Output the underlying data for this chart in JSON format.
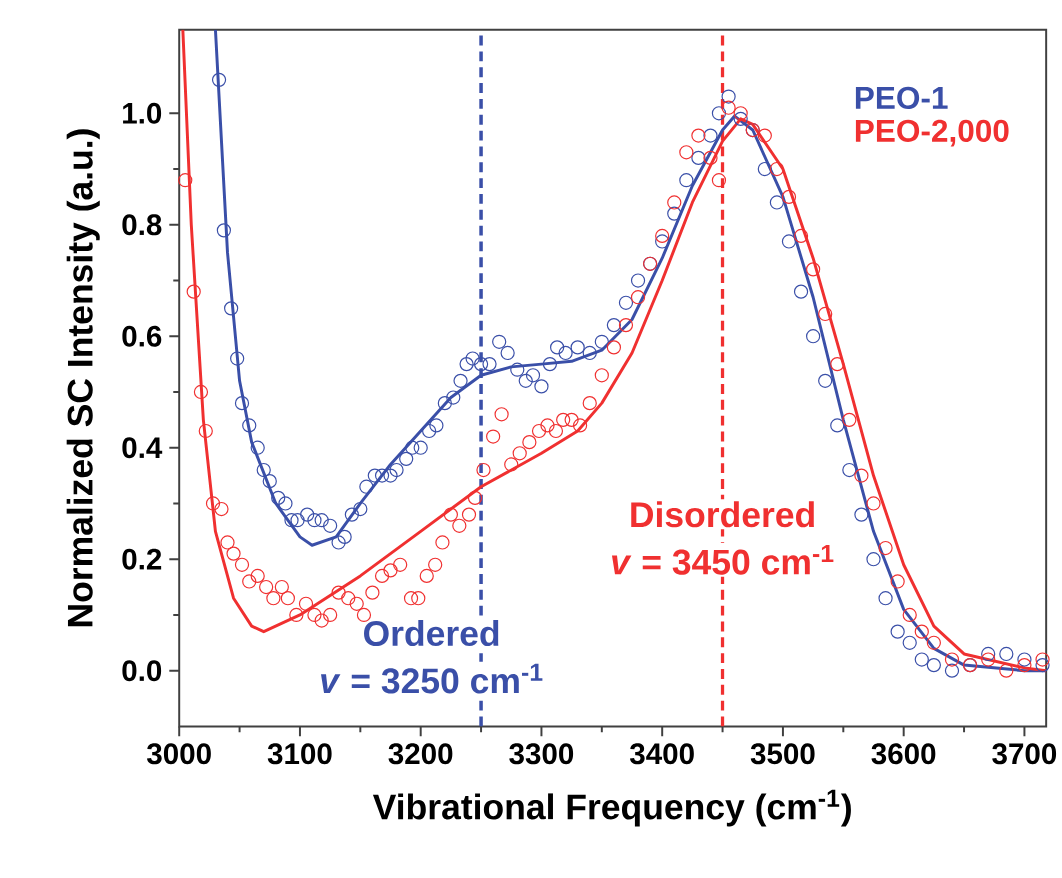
{
  "chart_data": {
    "type": "scatter",
    "xlabel": "Vibrational Frequency (cm$^{-1}$)",
    "ylabel": "Normalized SC Intensity (a.u.)",
    "xlim": [
      3000,
      3718
    ],
    "ylim": [
      -0.1,
      1.15
    ],
    "xticks": [
      3000,
      3100,
      3200,
      3300,
      3400,
      3500,
      3600,
      3700
    ],
    "yticks": [
      {
        "value": 0,
        "label": "0.0"
      },
      0.2,
      0.4,
      0.6,
      0.8,
      {
        "value": 1,
        "label": "1.0"
      }
    ],
    "grid": false,
    "legend": "top right",
    "series": [
      {
        "marker": "circle",
        "color": "#3a4fa8",
        "x": [
          3033,
          3037,
          3043,
          3048,
          3052,
          3058,
          3065,
          3070,
          3075,
          3082,
          3088,
          3093,
          3098,
          3106,
          3112,
          3118,
          3125,
          3132,
          3137,
          3143,
          3150,
          3155,
          3162,
          3168,
          3175,
          3180,
          3188,
          3193,
          3200,
          3207,
          3213,
          3220,
          3227,
          3233,
          3238,
          3243,
          3250,
          3257,
          3265,
          3272,
          3280,
          3287,
          3293,
          3300,
          3307,
          3313,
          3320,
          3330,
          3340,
          3350,
          3360,
          3370,
          3380,
          3390,
          3400,
          3410,
          3420,
          3430,
          3440,
          3447,
          3455,
          3465,
          3475,
          3485,
          3495,
          3505,
          3515,
          3525,
          3535,
          3545,
          3555,
          3565,
          3575,
          3585,
          3595,
          3605,
          3615,
          3625,
          3640,
          3655,
          3670,
          3685,
          3700,
          3715
        ],
        "values": [
          1.06,
          0.79,
          0.65,
          0.56,
          0.48,
          0.44,
          0.4,
          0.36,
          0.34,
          0.31,
          0.3,
          0.27,
          0.27,
          0.28,
          0.27,
          0.27,
          0.26,
          0.23,
          0.24,
          0.28,
          0.29,
          0.33,
          0.35,
          0.35,
          0.35,
          0.36,
          0.38,
          0.4,
          0.4,
          0.43,
          0.44,
          0.48,
          0.49,
          0.52,
          0.55,
          0.56,
          0.55,
          0.55,
          0.59,
          0.57,
          0.54,
          0.52,
          0.53,
          0.51,
          0.55,
          0.58,
          0.57,
          0.58,
          0.57,
          0.59,
          0.62,
          0.66,
          0.7,
          0.73,
          0.77,
          0.82,
          0.88,
          0.92,
          0.96,
          1.0,
          1.03,
          0.99,
          0.97,
          0.9,
          0.84,
          0.77,
          0.68,
          0.6,
          0.52,
          0.44,
          0.36,
          0.28,
          0.2,
          0.13,
          0.07,
          0.05,
          0.02,
          0.01,
          0.0,
          0.01,
          0.03,
          0.03,
          0.02,
          0.01
        ]
      },
      {
        "marker": "circle",
        "color": "#f03030",
        "x": [
          3005,
          3012,
          3018,
          3022,
          3028,
          3035,
          3040,
          3045,
          3052,
          3058,
          3065,
          3072,
          3078,
          3085,
          3090,
          3097,
          3105,
          3112,
          3118,
          3125,
          3132,
          3140,
          3147,
          3153,
          3160,
          3168,
          3175,
          3183,
          3192,
          3198,
          3205,
          3212,
          3218,
          3225,
          3232,
          3240,
          3245,
          3252,
          3260,
          3267,
          3275,
          3282,
          3290,
          3298,
          3305,
          3312,
          3318,
          3325,
          3332,
          3340,
          3350,
          3360,
          3370,
          3380,
          3390,
          3400,
          3410,
          3420,
          3430,
          3440,
          3447,
          3455,
          3465,
          3475,
          3485,
          3495,
          3505,
          3515,
          3525,
          3535,
          3545,
          3555,
          3565,
          3575,
          3585,
          3595,
          3605,
          3615,
          3625,
          3640,
          3655,
          3670,
          3685,
          3700,
          3715
        ],
        "values": [
          0.88,
          0.68,
          0.5,
          0.43,
          0.3,
          0.29,
          0.23,
          0.21,
          0.19,
          0.16,
          0.17,
          0.15,
          0.13,
          0.15,
          0.13,
          0.1,
          0.12,
          0.1,
          0.09,
          0.1,
          0.14,
          0.13,
          0.12,
          0.1,
          0.14,
          0.17,
          0.18,
          0.19,
          0.13,
          0.13,
          0.17,
          0.19,
          0.23,
          0.28,
          0.26,
          0.28,
          0.31,
          0.36,
          0.42,
          0.46,
          0.37,
          0.39,
          0.41,
          0.43,
          0.44,
          0.43,
          0.45,
          0.45,
          0.44,
          0.48,
          0.53,
          0.58,
          0.62,
          0.67,
          0.73,
          0.78,
          0.84,
          0.93,
          0.96,
          0.92,
          0.88,
          1.01,
          1.0,
          0.97,
          0.96,
          0.9,
          0.85,
          0.78,
          0.72,
          0.64,
          0.55,
          0.45,
          0.35,
          0.3,
          0.22,
          0.16,
          0.1,
          0.07,
          0.05,
          0.02,
          0.01,
          0.02,
          0.0,
          0.01,
          0.02
        ]
      },
      {
        "type": "line",
        "marker": "none",
        "name": "PEO-1",
        "color": "#3a4fa8",
        "x": [
          3030,
          3040,
          3050,
          3060,
          3080,
          3100,
          3110,
          3130,
          3150,
          3175,
          3200,
          3225,
          3250,
          3275,
          3300,
          3325,
          3350,
          3375,
          3400,
          3425,
          3450,
          3460,
          3475,
          3500,
          3525,
          3550,
          3575,
          3600,
          3625,
          3650,
          3700,
          3718
        ],
        "values": [
          1.15,
          0.75,
          0.52,
          0.41,
          0.3,
          0.24,
          0.225,
          0.24,
          0.3,
          0.37,
          0.43,
          0.49,
          0.53,
          0.545,
          0.55,
          0.555,
          0.575,
          0.63,
          0.74,
          0.87,
          0.97,
          0.995,
          0.97,
          0.85,
          0.67,
          0.45,
          0.25,
          0.11,
          0.04,
          0.01,
          0.0,
          0.0
        ]
      },
      {
        "type": "line",
        "marker": "none",
        "name": "PEO-2,000",
        "color": "#f03030",
        "x": [
          3003,
          3010,
          3020,
          3030,
          3045,
          3060,
          3070,
          3100,
          3150,
          3200,
          3250,
          3300,
          3330,
          3350,
          3375,
          3400,
          3425,
          3450,
          3465,
          3475,
          3500,
          3525,
          3550,
          3575,
          3600,
          3625,
          3650,
          3700,
          3718
        ],
        "values": [
          1.15,
          0.8,
          0.45,
          0.25,
          0.13,
          0.08,
          0.07,
          0.1,
          0.17,
          0.25,
          0.33,
          0.39,
          0.43,
          0.48,
          0.57,
          0.7,
          0.84,
          0.95,
          0.99,
          0.98,
          0.9,
          0.74,
          0.55,
          0.35,
          0.19,
          0.08,
          0.03,
          0.005,
          0.0
        ]
      }
    ],
    "ref_lines": [
      {
        "axis": "x",
        "value": 3250,
        "color": "#3a4fa8",
        "line_style": "dashed"
      },
      {
        "axis": "x",
        "value": 3450,
        "color": "#f03030",
        "line_style": "dashed"
      }
    ],
    "annotations": [
      "Ordered",
      "*v* = 3250 cm$^{-1}$",
      "Disordered",
      "*v* = 3450 cm$^{-1}$"
    ]
  }
}
